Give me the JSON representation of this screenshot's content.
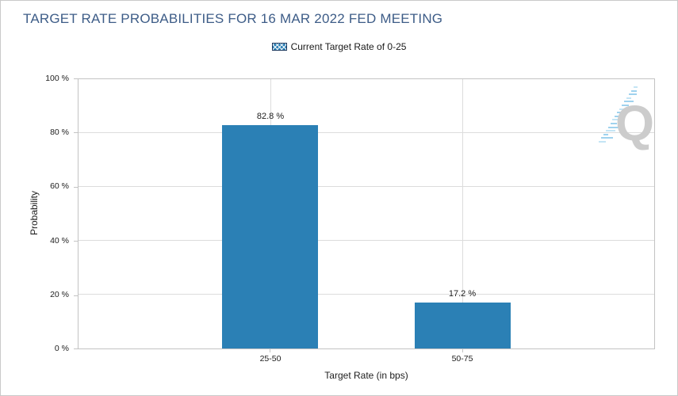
{
  "chart_data": {
    "type": "bar",
    "title": "TARGET RATE PROBABILITIES FOR 16 MAR 2022 FED MEETING",
    "categories": [
      "25-50",
      "50-75"
    ],
    "values": [
      82.8,
      17.2
    ],
    "value_labels": [
      "82.8 %",
      "17.2 %"
    ],
    "xlabel": "Target Rate (in bps)",
    "ylabel": "Probability",
    "ylim": [
      0,
      100
    ],
    "ytick_labels": [
      "0 %",
      "20 %",
      "40 %",
      "60 %",
      "80 %",
      "100 %"
    ],
    "grid": true,
    "legend": {
      "position": "top-center",
      "label": "Current Target Rate of 0-25",
      "swatch_style": "blue-crosshatch"
    },
    "bar_color": "#2b80b5",
    "title_color": "#3d5c87"
  },
  "watermark": {
    "letter": "Q"
  }
}
